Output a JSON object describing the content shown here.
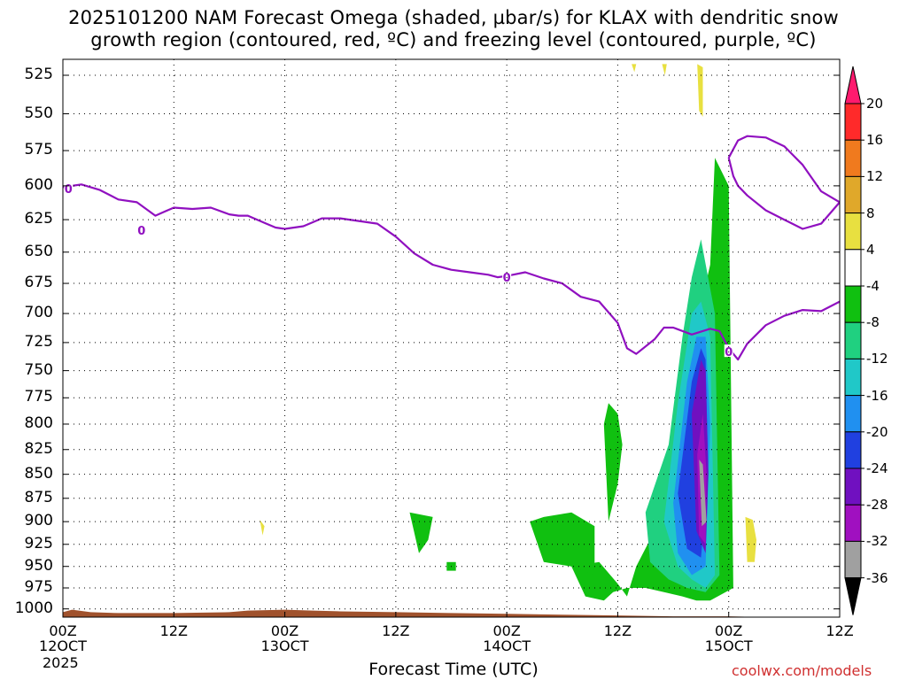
{
  "chart_data": {
    "type": "heatmap",
    "title_line1": "2025101200 NAM Forecast Omega (shaded, µbar/s) for KLAX with dendritic snow",
    "title_line2": "growth region (contoured, red, ºC) and freezing level (contoured, purple, ºC)",
    "xlabel": "Forecast Time (UTC)",
    "ylabel": "",
    "credit": "coolwx.com/models",
    "year": "2025",
    "x_ticks": [
      {
        "hour": 0,
        "top": "00Z",
        "bottom": "12OCT"
      },
      {
        "hour": 12,
        "top": "12Z",
        "bottom": ""
      },
      {
        "hour": 24,
        "top": "00Z",
        "bottom": "13OCT"
      },
      {
        "hour": 36,
        "top": "12Z",
        "bottom": ""
      },
      {
        "hour": 48,
        "top": "00Z",
        "bottom": "14OCT"
      },
      {
        "hour": 60,
        "top": "12Z",
        "bottom": ""
      },
      {
        "hour": 72,
        "top": "00Z",
        "bottom": "15OCT"
      },
      {
        "hour": 84,
        "top": "12Z",
        "bottom": ""
      }
    ],
    "xlim": [
      0,
      84
    ],
    "y_ticks": [
      525,
      550,
      575,
      600,
      625,
      650,
      675,
      700,
      725,
      750,
      775,
      800,
      825,
      850,
      875,
      900,
      925,
      950,
      975,
      1000
    ],
    "ylim": [
      1010,
      515
    ],
    "y_scale": "log-pressure",
    "grid": true,
    "colorbar": {
      "labels": [
        "20",
        "16",
        "12",
        "8",
        "4",
        "-4",
        "-8",
        "-12",
        "-16",
        "-20",
        "-24",
        "-28",
        "-32",
        "-36"
      ],
      "colors": [
        "#ff1a6e",
        "#ff2a2a",
        "#f07a1e",
        "#e0a82a",
        "#e8e040",
        "#ffffff",
        "#10c010",
        "#20d080",
        "#20c8c8",
        "#2090f0",
        "#2040e0",
        "#7010c0",
        "#a010c0",
        "#a0a0a0",
        "#000000"
      ]
    },
    "freezing_level": {
      "label": "0",
      "color": "#9010c0",
      "main_hours": [
        0,
        1,
        2,
        4,
        6,
        8,
        10,
        11,
        12,
        14,
        16,
        18,
        19,
        20,
        22,
        23,
        24,
        26,
        27,
        28,
        30,
        32,
        34,
        36,
        38,
        40,
        42,
        44,
        46,
        47,
        48,
        50,
        52,
        54,
        56,
        58,
        60,
        61,
        62,
        64,
        65,
        66,
        68,
        70,
        71,
        72,
        73,
        74,
        76,
        78,
        80,
        82,
        84
      ],
      "main_pressure": [
        601,
        600,
        599,
        603,
        610,
        612,
        622,
        619,
        616,
        617,
        616,
        621,
        622,
        622,
        628,
        631,
        632,
        630,
        627,
        624,
        624,
        626,
        628,
        638,
        651,
        660,
        664,
        666,
        668,
        670,
        669,
        666,
        671,
        675,
        686,
        690,
        708,
        730,
        735,
        722,
        712,
        712,
        718,
        713,
        715,
        730,
        740,
        726,
        710,
        702,
        697,
        698,
        690
      ],
      "upper_loop_hours": [
        72,
        73,
        74,
        76,
        78,
        80,
        82,
        84,
        82,
        80,
        78,
        76,
        74,
        73,
        72.5,
        72
      ],
      "upper_loop_pressure": [
        580,
        568,
        565,
        566,
        572,
        585,
        604,
        612,
        628,
        632,
        625,
        618,
        607,
        600,
        593,
        580
      ]
    },
    "omega_regions": [
      {
        "value_range": "-4 to -8",
        "color": "#10c010",
        "hours": [
          55.0,
          58.0,
          60.0,
          61.0,
          62.0,
          64.5,
          65.5,
          67.0,
          68.5,
          70.0,
          70.5,
          72.0,
          72.5,
          70.0,
          68.5,
          67.0,
          65.0,
          63.0,
          61.0,
          59.5,
          58.5,
          56.5,
          55.0
        ],
        "pressure": [
          950,
          945,
          970,
          985,
          950,
          900,
          850,
          780,
          710,
          660,
          580,
          600,
          975,
          990,
          990,
          985,
          980,
          975,
          975,
          980,
          990,
          985,
          950
        ]
      },
      {
        "value_range": "-4 to -8",
        "color": "#10c010",
        "hours": [
          58.5,
          59.0,
          60.0,
          60.5,
          60.0,
          59.0,
          58.5
        ],
        "pressure": [
          800,
          780,
          790,
          820,
          860,
          900,
          800
        ]
      },
      {
        "value_range": "-4 to -8",
        "color": "#10c010",
        "hours": [
          50.5,
          52.0,
          55.0,
          57.5,
          57.5,
          55.0,
          52.0,
          50.5
        ],
        "pressure": [
          900,
          895,
          890,
          905,
          960,
          950,
          945,
          900
        ]
      },
      {
        "value_range": "-4 to -8",
        "color": "#10c010",
        "hours": [
          37.5,
          40.0,
          39.5,
          38.5,
          37.5
        ],
        "pressure": [
          890,
          895,
          920,
          935,
          890
        ]
      },
      {
        "value_range": "-4 to -8",
        "color": "#10c010",
        "hours": [
          41.5,
          42.5,
          42.5,
          41.5,
          41.5
        ],
        "pressure": [
          945,
          945,
          955,
          955,
          945
        ]
      },
      {
        "value_range": "-8 to -12",
        "color": "#20d080",
        "hours": [
          63.0,
          65.5,
          67.0,
          68.0,
          69.0,
          70.5,
          71.0,
          69.5,
          67.5,
          65.5,
          63.5,
          63.0
        ],
        "pressure": [
          890,
          820,
          720,
          670,
          640,
          700,
          960,
          980,
          975,
          965,
          945,
          890
        ]
      },
      {
        "value_range": "-12 to -16",
        "color": "#20c8c8",
        "hours": [
          65.0,
          66.5,
          68.0,
          69.0,
          70.0,
          70.5,
          69.5,
          68.0,
          66.5,
          65.0
        ],
        "pressure": [
          900,
          780,
          700,
          690,
          720,
          960,
          975,
          965,
          950,
          900
        ]
      },
      {
        "value_range": "-16 to -20",
        "color": "#2090f0",
        "hours": [
          66.0,
          67.5,
          68.5,
          69.5,
          70.0,
          69.5,
          68.0,
          66.5,
          66.0
        ],
        "pressure": [
          880,
          760,
          720,
          720,
          800,
          950,
          960,
          935,
          880
        ]
      },
      {
        "value_range": "-20 to -24",
        "color": "#2040e0",
        "hours": [
          66.5,
          68.0,
          69.0,
          69.5,
          69.8,
          69.0,
          67.5,
          66.5
        ],
        "pressure": [
          870,
          760,
          730,
          740,
          850,
          940,
          930,
          870
        ]
      },
      {
        "value_range": "-24 to -28",
        "color": "#7010c0",
        "hours": [
          68.0,
          69.0,
          69.5,
          69.8,
          69.5,
          68.5,
          68.0
        ],
        "pressure": [
          790,
          740,
          750,
          850,
          935,
          910,
          790
        ]
      },
      {
        "value_range": "-28 to -32",
        "color": "#a010c0",
        "hours": [
          68.6,
          69.2,
          69.6,
          69.5,
          68.8,
          68.6
        ],
        "pressure": [
          830,
          790,
          850,
          925,
          915,
          830
        ]
      },
      {
        "value_range": "-32 to -36",
        "color": "#a0a0a0",
        "hours": [
          68.8,
          69.2,
          69.6,
          69.1,
          68.8
        ],
        "pressure": [
          835,
          840,
          900,
          905,
          835
        ]
      },
      {
        "value_range": "4 to 8",
        "color": "#e8e040",
        "hours": [
          68.6,
          69.2,
          69.2,
          68.8,
          68.6
        ],
        "pressure": [
          518,
          520,
          552,
          548,
          518
        ]
      },
      {
        "value_range": "4 to 8",
        "color": "#e8e040",
        "hours": [
          64.8,
          65.3,
          65.1,
          64.8
        ],
        "pressure": [
          518,
          518,
          525,
          518
        ]
      },
      {
        "value_range": "4 to 8",
        "color": "#e8e040",
        "hours": [
          61.5,
          62.0,
          61.8,
          61.5
        ],
        "pressure": [
          518,
          518,
          523,
          518
        ]
      },
      {
        "value_range": "4 to 8",
        "color": "#e8e040",
        "hours": [
          73.8,
          74.6,
          75.0,
          74.8,
          74.0,
          73.8
        ],
        "pressure": [
          895,
          898,
          920,
          945,
          945,
          895
        ]
      },
      {
        "value_range": "4 to 8",
        "color": "#e8e040",
        "hours": [
          21.3,
          21.8,
          21.6,
          21.3
        ],
        "pressure": [
          898,
          905,
          915,
          898
        ]
      }
    ],
    "terrain": {
      "color": "#a0522d",
      "hours": [
        0,
        1,
        3,
        6,
        12,
        18,
        20,
        24,
        27,
        30,
        36,
        42,
        48,
        54,
        60,
        66,
        70,
        72,
        76,
        80,
        84
      ],
      "pressure": [
        1004,
        1001,
        1004,
        1005,
        1005,
        1004,
        1002,
        1001,
        1002,
        1003,
        1004,
        1005,
        1006,
        1007,
        1008,
        1009,
        1009,
        1009,
        1010,
        1011,
        1011
      ]
    }
  }
}
